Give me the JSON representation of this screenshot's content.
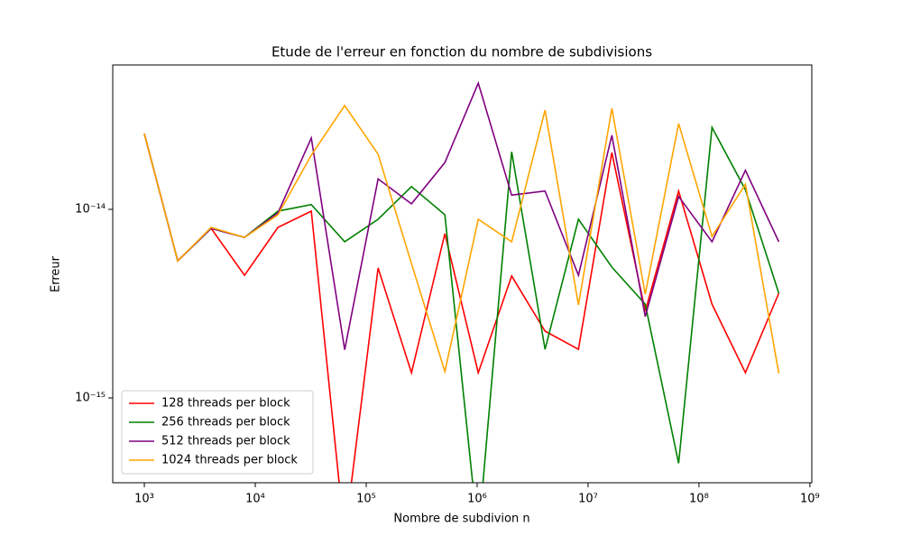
{
  "chart_data": {
    "type": "line",
    "title": "Etude de l'erreur en fonction du nombre de subdivisions",
    "x_label": "Nombre de subdivion n",
    "y_label": "Erreur",
    "xscale": "log",
    "yscale": "log",
    "x": [
      1000,
      2000,
      4000,
      8000,
      16000,
      32000,
      64000,
      128000,
      256000,
      512000,
      1024000,
      2048000,
      4096000,
      8192000,
      16384000,
      32768000,
      65536000,
      131072000,
      262144000,
      524288000
    ],
    "series": [
      {
        "name": "128 threads per block",
        "color": "#ff0000",
        "values": [
          2.52e-14,
          5.33e-15,
          7.93e-15,
          4.47e-15,
          8.02e-15,
          9.78e-15,
          0,
          4.89e-15,
          1.36e-15,
          7.43e-15,
          1.36e-15,
          4.43e-15,
          2.26e-15,
          1.81e-15,
          2e-14,
          2.88e-15,
          1.25e-14,
          3.14e-15,
          1.36e-15,
          3.59e-15
        ]
      },
      {
        "name": "256 threads per block",
        "color": "#008000",
        "values": [
          2.52e-14,
          5.33e-15,
          7.93e-15,
          7.1e-15,
          9.78e-15,
          1.06e-14,
          6.73e-15,
          8.86e-15,
          1.32e-14,
          9.36e-15,
          0,
          2.02e-14,
          1.81e-15,
          8.86e-15,
          4.94e-15,
          3.14e-15,
          4.5e-16,
          2.72e-14,
          1.27e-14,
          3.59e-15
        ]
      },
      {
        "name": "512 threads per block",
        "color": "#800080",
        "values": [
          2.52e-14,
          5.33e-15,
          7.93e-15,
          7.1e-15,
          9.57e-15,
          2.39e-14,
          1.8e-15,
          1.45e-14,
          1.07e-14,
          1.77e-14,
          4.67e-14,
          1.19e-14,
          1.25e-14,
          4.47e-15,
          2.47e-14,
          2.7e-15,
          1.17e-14,
          6.73e-15,
          1.61e-14,
          6.73e-15
        ]
      },
      {
        "name": "1024 threads per block",
        "color": "#ffa500",
        "values": [
          2.52e-14,
          5.33e-15,
          8.02e-15,
          7.1e-15,
          9.36e-15,
          1.94e-14,
          3.55e-14,
          1.96e-14,
          5.16e-15,
          1.38e-15,
          8.86e-15,
          6.73e-15,
          3.36e-14,
          3.11e-15,
          3.43e-14,
          3.55e-15,
          2.85e-14,
          7.18e-15,
          1.36e-14,
          1.35e-15
        ]
      }
    ],
    "xlim": [
      519,
      1040000000.0
    ],
    "ylim": [
      3.55e-16,
      5.83e-14
    ],
    "xticks": [
      {
        "value": 1000,
        "label": "10³"
      },
      {
        "value": 10000,
        "label": "10⁴"
      },
      {
        "value": 100000,
        "label": "10⁵"
      },
      {
        "value": 1000000,
        "label": "10⁶"
      },
      {
        "value": 10000000,
        "label": "10⁷"
      },
      {
        "value": 100000000,
        "label": "10⁸"
      },
      {
        "value": 1000000000,
        "label": "10⁹"
      }
    ],
    "yticks": [
      {
        "value": 1e-15,
        "label": "10⁻¹⁵"
      },
      {
        "value": 1e-14,
        "label": "10⁻¹⁴"
      }
    ],
    "legend": "lower left"
  }
}
